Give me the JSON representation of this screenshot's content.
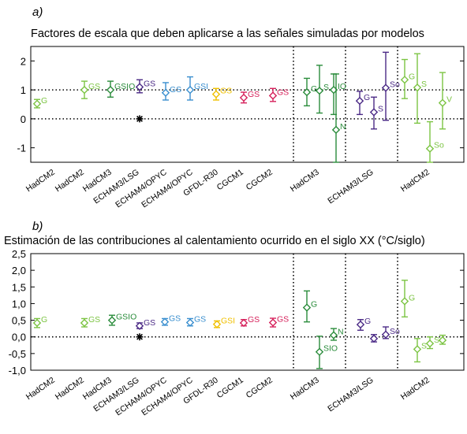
{
  "chart_data": [
    {
      "type": "scatter",
      "panel": "a)",
      "title": "Factores de escala que deben aplicarse a las señales simuladas por modelos",
      "ylim": [
        -1.5,
        2.5
      ],
      "yticks": [
        -1,
        0,
        1,
        2
      ],
      "reference_lines": [
        0,
        1
      ],
      "categories": [
        "HadCM2",
        "HadCM2",
        "HadCM3",
        "ECHAM3/LSG",
        "ECHAM4/OPYC",
        "ECHAM4/OPYC",
        "GFDL-R30",
        "CGCM1",
        "CGCM2",
        "HadCM3",
        "ECHAM3/LSG",
        "HadCM2"
      ],
      "points": [
        {
          "model": "HadCM2",
          "label": "G",
          "value": 0.52,
          "low": 0.38,
          "high": 0.67,
          "color": "#7cc443"
        },
        {
          "model": "HadCM2",
          "label": "GS",
          "value": 1.0,
          "low": 0.7,
          "high": 1.3,
          "color": "#7cc443"
        },
        {
          "model": "HadCM3",
          "label": "GSIO",
          "value": 1.0,
          "low": 0.75,
          "high": 1.3,
          "color": "#2a8c3b"
        },
        {
          "model": "ECHAM3/LSG",
          "label": "GS",
          "value": 1.1,
          "low": 0.9,
          "high": 1.35,
          "color": "#4b2a86"
        },
        {
          "model": "ECHAM3/LSG",
          "label": "",
          "value": 0.0,
          "low": 0.0,
          "high": 0.0,
          "color": "#000000"
        },
        {
          "model": "ECHAM4/OPYC",
          "label": "GS",
          "value": 0.9,
          "low": 0.65,
          "high": 1.25,
          "color": "#3a8fcf"
        },
        {
          "model": "ECHAM4/OPYC",
          "label": "GSI",
          "value": 1.0,
          "low": 0.65,
          "high": 1.45,
          "color": "#3a8fcf"
        },
        {
          "model": "GFDL-R30",
          "label": "GS",
          "value": 0.85,
          "low": 0.65,
          "high": 1.05,
          "color": "#f0c000"
        },
        {
          "model": "CGCM1",
          "label": "GS",
          "value": 0.73,
          "low": 0.55,
          "high": 0.92,
          "color": "#d6215b"
        },
        {
          "model": "CGCM2",
          "label": "GS",
          "value": 0.8,
          "low": 0.6,
          "high": 1.05,
          "color": "#d6215b"
        },
        {
          "model": "HadCM3",
          "label": "G",
          "value": 0.92,
          "low": 0.45,
          "high": 1.4,
          "color": "#2a8c3b"
        },
        {
          "model": "HadCM3",
          "label": "S",
          "value": 0.97,
          "low": 0.2,
          "high": 1.85,
          "color": "#2a8c3b"
        },
        {
          "model": "HadCM3",
          "label": "IO",
          "value": 1.0,
          "low": 0.15,
          "high": 1.55,
          "color": "#2a8c3b"
        },
        {
          "model": "HadCM3",
          "label": "N",
          "value": -0.38,
          "low": -1.5,
          "high": 1.55,
          "color": "#2a8c3b"
        },
        {
          "model": "ECHAM3/LSG",
          "label": "G",
          "value": 0.62,
          "low": 0.15,
          "high": 0.95,
          "color": "#4b2a86"
        },
        {
          "model": "ECHAM3/LSG",
          "label": "S",
          "value": 0.23,
          "low": -0.35,
          "high": 0.75,
          "color": "#4b2a86"
        },
        {
          "model": "ECHAM3/LSG",
          "label": "So",
          "value": 1.07,
          "low": -0.05,
          "high": 2.3,
          "color": "#4b2a86"
        },
        {
          "model": "HadCM2",
          "label": "G",
          "value": 1.35,
          "low": 0.7,
          "high": 2.05,
          "color": "#7cc443"
        },
        {
          "model": "HadCM2",
          "label": "S",
          "value": 1.08,
          "low": -0.15,
          "high": 2.25,
          "color": "#7cc443"
        },
        {
          "model": "HadCM2",
          "label": "So",
          "value": -1.03,
          "low": -1.5,
          "high": -0.1,
          "color": "#7cc443"
        },
        {
          "model": "HadCM2",
          "label": "V",
          "value": 0.55,
          "low": -0.35,
          "high": 1.6,
          "color": "#7cc443"
        }
      ]
    },
    {
      "type": "scatter",
      "panel": "b)",
      "title": "Estimación de las contribuciones al calentamiento ocurrido en el siglo XX (°C/siglo)",
      "ylim": [
        -1.0,
        2.5
      ],
      "yticks": [
        -1.0,
        -0.5,
        0.0,
        0.5,
        1.0,
        1.5,
        2.0,
        2.5
      ],
      "yticklabels": [
        "-1,0",
        "-0,5",
        "0,0",
        "0,5",
        "1,0",
        "1,5",
        "2,0",
        "2,5"
      ],
      "reference_lines": [
        0
      ],
      "categories": [
        "HadCM2",
        "HadCM2",
        "HadCM3",
        "ECHAM3/LSG",
        "ECHAM4/OPYC",
        "ECHAM4/OPYC",
        "GFDL-R30",
        "CGCM1",
        "CGCM2",
        "HadCM3",
        "ECHAM3/LSG",
        "HadCM2"
      ],
      "points": [
        {
          "model": "HadCM2",
          "label": "G",
          "value": 0.42,
          "low": 0.28,
          "high": 0.55,
          "color": "#7cc443"
        },
        {
          "model": "HadCM2",
          "label": "GS",
          "value": 0.42,
          "low": 0.3,
          "high": 0.55,
          "color": "#7cc443"
        },
        {
          "model": "HadCM3",
          "label": "GSIO",
          "value": 0.5,
          "low": 0.35,
          "high": 0.65,
          "color": "#2a8c3b"
        },
        {
          "model": "ECHAM3/LSG",
          "label": "GS",
          "value": 0.33,
          "low": 0.25,
          "high": 0.42,
          "color": "#4b2a86"
        },
        {
          "model": "ECHAM3/LSG",
          "label": "",
          "value": 0.0,
          "low": 0.0,
          "high": 0.0,
          "color": "#000000"
        },
        {
          "model": "ECHAM4/OPYC",
          "label": "GS",
          "value": 0.45,
          "low": 0.35,
          "high": 0.55,
          "color": "#3a8fcf"
        },
        {
          "model": "ECHAM4/OPYC",
          "label": "GS",
          "value": 0.43,
          "low": 0.33,
          "high": 0.55,
          "color": "#3a8fcf"
        },
        {
          "model": "GFDL-R30",
          "label": "GSI",
          "value": 0.38,
          "low": 0.28,
          "high": 0.48,
          "color": "#f0c000"
        },
        {
          "model": "CGCM1",
          "label": "GS",
          "value": 0.42,
          "low": 0.33,
          "high": 0.52,
          "color": "#d6215b"
        },
        {
          "model": "CGCM2",
          "label": "GS",
          "value": 0.43,
          "low": 0.3,
          "high": 0.56,
          "color": "#d6215b"
        },
        {
          "model": "HadCM3",
          "label": "G",
          "value": 0.88,
          "low": 0.45,
          "high": 1.38,
          "color": "#2a8c3b"
        },
        {
          "model": "HadCM3",
          "label": "SIO",
          "value": -0.45,
          "low": -0.95,
          "high": 0.02,
          "color": "#2a8c3b"
        },
        {
          "model": "HadCM3",
          "label": "N",
          "value": 0.05,
          "low": -0.1,
          "high": 0.25,
          "color": "#2a8c3b"
        },
        {
          "model": "ECHAM3/LSG",
          "label": "G",
          "value": 0.37,
          "low": 0.2,
          "high": 0.52,
          "color": "#4b2a86"
        },
        {
          "model": "ECHAM3/LSG",
          "label": "",
          "value": -0.05,
          "low": -0.15,
          "high": 0.07,
          "color": "#4b2a86"
        },
        {
          "model": "ECHAM3/LSG",
          "label": "So",
          "value": 0.07,
          "low": -0.05,
          "high": 0.3,
          "color": "#4b2a86"
        },
        {
          "model": "HadCM2",
          "label": "G",
          "value": 1.07,
          "low": 0.6,
          "high": 1.7,
          "color": "#7cc443"
        },
        {
          "model": "HadCM2",
          "label": "S",
          "value": -0.37,
          "low": -0.75,
          "high": -0.05,
          "color": "#7cc443"
        },
        {
          "model": "HadCM2",
          "label": "So",
          "value": -0.2,
          "low": -0.35,
          "high": 0.0,
          "color": "#7cc443"
        },
        {
          "model": "HadCM2",
          "label": "",
          "value": -0.1,
          "low": -0.22,
          "high": 0.05,
          "color": "#7cc443"
        }
      ]
    }
  ]
}
